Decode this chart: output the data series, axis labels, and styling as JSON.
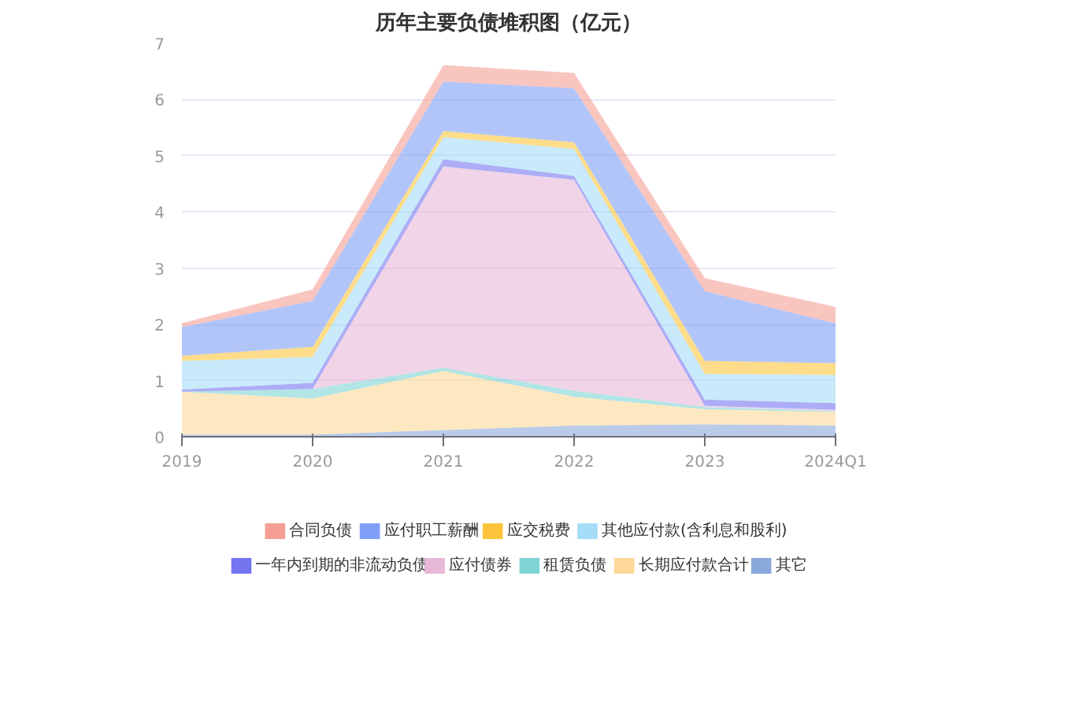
{
  "chart_data": {
    "type": "area",
    "title": "历年主要负债堆积图（亿元）",
    "stacked": true,
    "categories": [
      "2019",
      "2020",
      "2021",
      "2022",
      "2023",
      "2024Q1"
    ],
    "ylim": [
      0,
      7
    ],
    "yticks": [
      0,
      1,
      2,
      3,
      4,
      5,
      6,
      7
    ],
    "grid": "y",
    "legend": "bottom",
    "series": [
      {
        "name": "其它",
        "color": "#8aa9da",
        "values": [
          0.04,
          0.04,
          0.12,
          0.2,
          0.22,
          0.2
        ]
      },
      {
        "name": "长期应付款合计",
        "color": "#fdd898",
        "values": [
          0.76,
          0.64,
          1.05,
          0.51,
          0.27,
          0.24
        ]
      },
      {
        "name": "租赁负债",
        "color": "#7fd4d4",
        "values": [
          0,
          0.17,
          0.06,
          0.11,
          0.04,
          0.02
        ]
      },
      {
        "name": "应付债券",
        "color": "#e8b8d9",
        "values": [
          0,
          0,
          3.58,
          3.75,
          0.02,
          0.02
        ]
      },
      {
        "name": "一年内到期的非流动负债",
        "color": "#7476f0",
        "values": [
          0.04,
          0.11,
          0.13,
          0.07,
          0.11,
          0.12
        ]
      },
      {
        "name": "其他应付款(含利息和股利)",
        "color": "#a5dcf7",
        "values": [
          0.51,
          0.46,
          0.39,
          0.48,
          0.46,
          0.5
        ]
      },
      {
        "name": "应交税费",
        "color": "#fdc43b",
        "values": [
          0.09,
          0.18,
          0.11,
          0.12,
          0.23,
          0.21
        ]
      },
      {
        "name": "应付职工薪酬",
        "color": "#7f9ef5",
        "values": [
          0.51,
          0.82,
          0.88,
          0.96,
          1.24,
          0.71
        ]
      },
      {
        "name": "合同负债",
        "color": "#f59e95",
        "values": [
          0.07,
          0.2,
          0.29,
          0.27,
          0.23,
          0.29
        ]
      }
    ]
  }
}
